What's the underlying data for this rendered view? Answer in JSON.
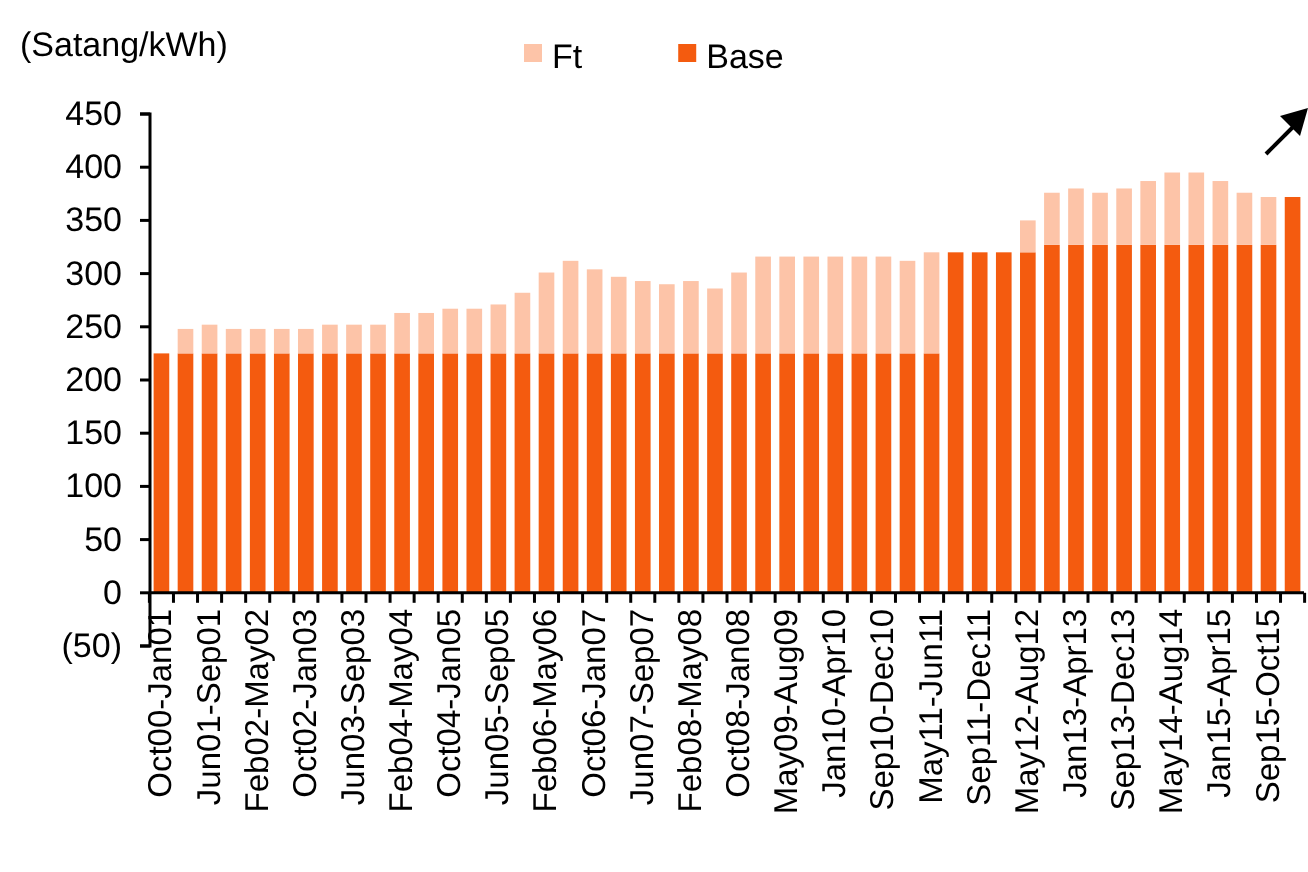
{
  "chart_data": {
    "type": "bar",
    "stacked": true,
    "ylabel": "(Satang/kWh)",
    "categories": [
      "Oct00-Jan01",
      null,
      "Jun01-Sep01",
      null,
      "Feb02-May02",
      null,
      "Oct02-Jan03",
      null,
      "Jun03-Sep03",
      null,
      "Feb04-May04",
      null,
      "Oct04-Jan05",
      null,
      "Jun05-Sep05",
      null,
      "Feb06-May06",
      null,
      "Oct06-Jan07",
      null,
      "Jun07-Sep07",
      null,
      "Feb08-May08",
      null,
      "Oct08-Jan08",
      null,
      "May09-Aug09",
      null,
      "Jan10-Apr10",
      null,
      "Sep10-Dec10",
      null,
      "May11-Jun11",
      null,
      "Sep11-Dec11",
      null,
      "May12-Aug12",
      null,
      "Jan13-Apr13",
      null,
      "Sep13-Dec13",
      null,
      "May14-Aug14",
      null,
      "Jan15-Apr15",
      null,
      "Sep15-Oct15",
      null
    ],
    "series": [
      {
        "name": "Base",
        "color": "#f45b0f",
        "values": [
          225,
          225,
          225,
          225,
          225,
          225,
          225,
          225,
          225,
          225,
          225,
          225,
          225,
          225,
          225,
          225,
          225,
          225,
          225,
          225,
          225,
          225,
          225,
          225,
          225,
          225,
          225,
          225,
          225,
          225,
          225,
          225,
          225,
          320,
          320,
          320,
          320,
          327,
          327,
          327,
          327,
          327,
          327,
          327,
          327,
          327,
          327,
          372
        ]
      },
      {
        "name": "Ft",
        "color": "#fdc4a8",
        "values": [
          0,
          23,
          27,
          23,
          23,
          23,
          23,
          27,
          27,
          27,
          38,
          38,
          42,
          42,
          46,
          57,
          76,
          87,
          79,
          72,
          68,
          65,
          68,
          61,
          76,
          91,
          91,
          91,
          91,
          91,
          91,
          87,
          95,
          null,
          null,
          0,
          30,
          49,
          53,
          49,
          53,
          60,
          68,
          68,
          60,
          49,
          45,
          0
        ]
      }
    ],
    "ylim": [
      -50,
      450
    ],
    "yticks": [
      {
        "value": -50,
        "label": "(50)"
      },
      0,
      50,
      100,
      150,
      200,
      250,
      300,
      350,
      400,
      450
    ],
    "legend": "top"
  }
}
